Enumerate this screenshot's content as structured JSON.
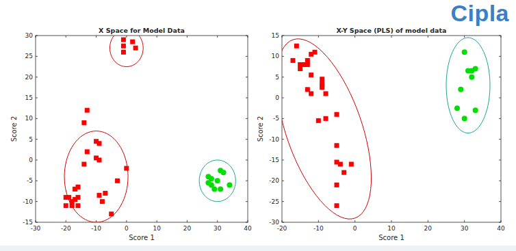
{
  "header": {
    "logo": "Cipla"
  },
  "chart_data": [
    {
      "type": "scatter",
      "title": "X Space for Model Data",
      "x_label": "Score 1",
      "y_label": "Score 2",
      "xlim": [
        -30,
        40
      ],
      "xticks": [
        -30,
        -20,
        -10,
        0,
        10,
        20,
        30,
        40
      ],
      "ylim": [
        -15,
        30
      ],
      "yticks": [
        -15,
        -10,
        -5,
        0,
        5,
        10,
        15,
        20,
        25,
        30
      ],
      "series": [
        {
          "color": "#ff0000",
          "marker": "square",
          "x": [
            -1,
            2,
            -1,
            -1,
            3,
            -13,
            -14,
            -13,
            -10,
            -9,
            -14,
            -10,
            -9,
            0,
            -3,
            -7,
            -9,
            -8,
            -5,
            -16,
            -17,
            -16,
            -17,
            -18,
            -19,
            -20,
            -20,
            -16,
            -18
          ],
          "values": [
            29,
            28.5,
            27.5,
            26,
            27,
            12,
            9,
            2,
            4.5,
            4,
            -1,
            0.5,
            0,
            -2,
            -5,
            -8,
            -8.5,
            -10,
            -13,
            -6.5,
            -7,
            -9,
            -9.5,
            -10,
            -9,
            -11,
            -9,
            -11,
            -11
          ]
        },
        {
          "color": "#00e000",
          "marker": "circle",
          "x": [
            27,
            28,
            30,
            31,
            32,
            34,
            29,
            31,
            27,
            28
          ],
          "values": [
            -4,
            -6,
            -5,
            -2.5,
            -3,
            -6,
            -7,
            -7,
            -5.5,
            -4.5
          ]
        }
      ],
      "regions": [
        {
          "color": "#d40000",
          "center": [
            0,
            27
          ],
          "axis1": [
            5.5,
            0
          ],
          "axis2": [
            0,
            4.5
          ]
        },
        {
          "color": "#d40000",
          "center": [
            -10,
            -4
          ],
          "axis1": [
            10.5,
            0
          ],
          "axis2": [
            0,
            11
          ]
        },
        {
          "color": "#16a596",
          "center": [
            30,
            -5
          ],
          "axis1": [
            6,
            0
          ],
          "axis2": [
            0,
            5
          ]
        }
      ]
    },
    {
      "type": "scatter",
      "title": "X-Y Space (PLS) of model data",
      "x_label": "Score 1",
      "y_label": "Score 2",
      "xlim": [
        -20,
        40
      ],
      "xticks": [
        -20,
        -10,
        0,
        10,
        20,
        30,
        40
      ],
      "ylim": [
        -30,
        15
      ],
      "yticks": [
        -30,
        -25,
        -20,
        -15,
        -10,
        -5,
        0,
        5,
        10,
        15
      ],
      "series": [
        {
          "color": "#ff0000",
          "marker": "square",
          "x": [
            -17,
            -16,
            -15,
            -14,
            -15,
            -13,
            -12,
            -13,
            -12,
            -11,
            -13,
            -12,
            -9,
            -9,
            -9,
            -9,
            -8,
            -8,
            -10,
            -5,
            -5,
            -5,
            -4,
            -3,
            -1,
            -5,
            -5
          ],
          "values": [
            9,
            12.5,
            7,
            8,
            8,
            8,
            10.5,
            9,
            5.5,
            11,
            2,
            1,
            4.5,
            3.5,
            3,
            2.5,
            1,
            -5,
            -5.5,
            -4,
            -11.5,
            -15.5,
            -16,
            -18,
            -16,
            -21,
            -26
          ]
        },
        {
          "color": "#00e000",
          "marker": "circle",
          "x": [
            30,
            31,
            32,
            32,
            33,
            29,
            30,
            28,
            33
          ],
          "values": [
            11,
            6.5,
            6.5,
            5,
            7,
            2,
            -5,
            -2.5,
            -3
          ]
        }
      ],
      "regions": [
        {
          "color": "#d40000",
          "center": [
            -8.5,
            -7.5
          ],
          "axis1": [
            8.5,
            -21.5
          ],
          "axis2": [
            9.8,
            3
          ]
        },
        {
          "color": "#16a596",
          "center": [
            31,
            3
          ],
          "axis1": [
            6,
            0
          ],
          "axis2": [
            0,
            11.5
          ]
        }
      ]
    }
  ]
}
